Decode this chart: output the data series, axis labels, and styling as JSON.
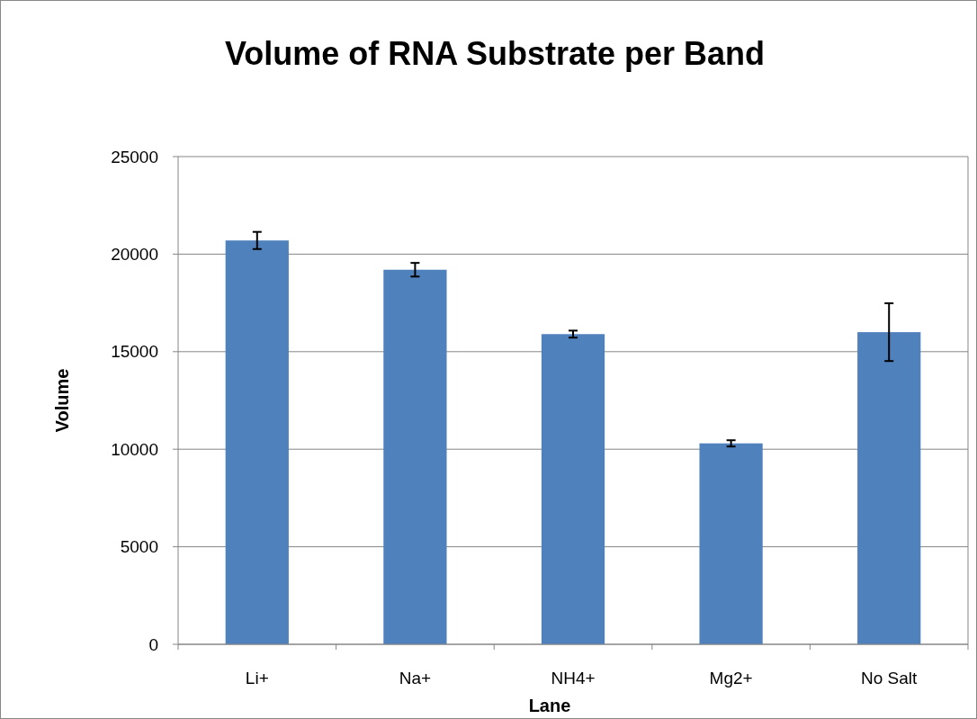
{
  "chart_data": {
    "type": "bar",
    "title": "Volume of RNA Substrate per Band",
    "xlabel": "Lane",
    "ylabel": "Volume",
    "categories": [
      "Li+",
      "Na+",
      "NH4+",
      "Mg2+",
      "No Salt"
    ],
    "values": [
      20700,
      19200,
      15900,
      10300,
      16000
    ],
    "errors": [
      440,
      350,
      180,
      160,
      1480
    ],
    "color": "#4f81bd",
    "ylim": [
      0,
      25000
    ],
    "yticks": [
      0,
      5000,
      10000,
      15000,
      20000,
      25000
    ],
    "grid": "y"
  }
}
